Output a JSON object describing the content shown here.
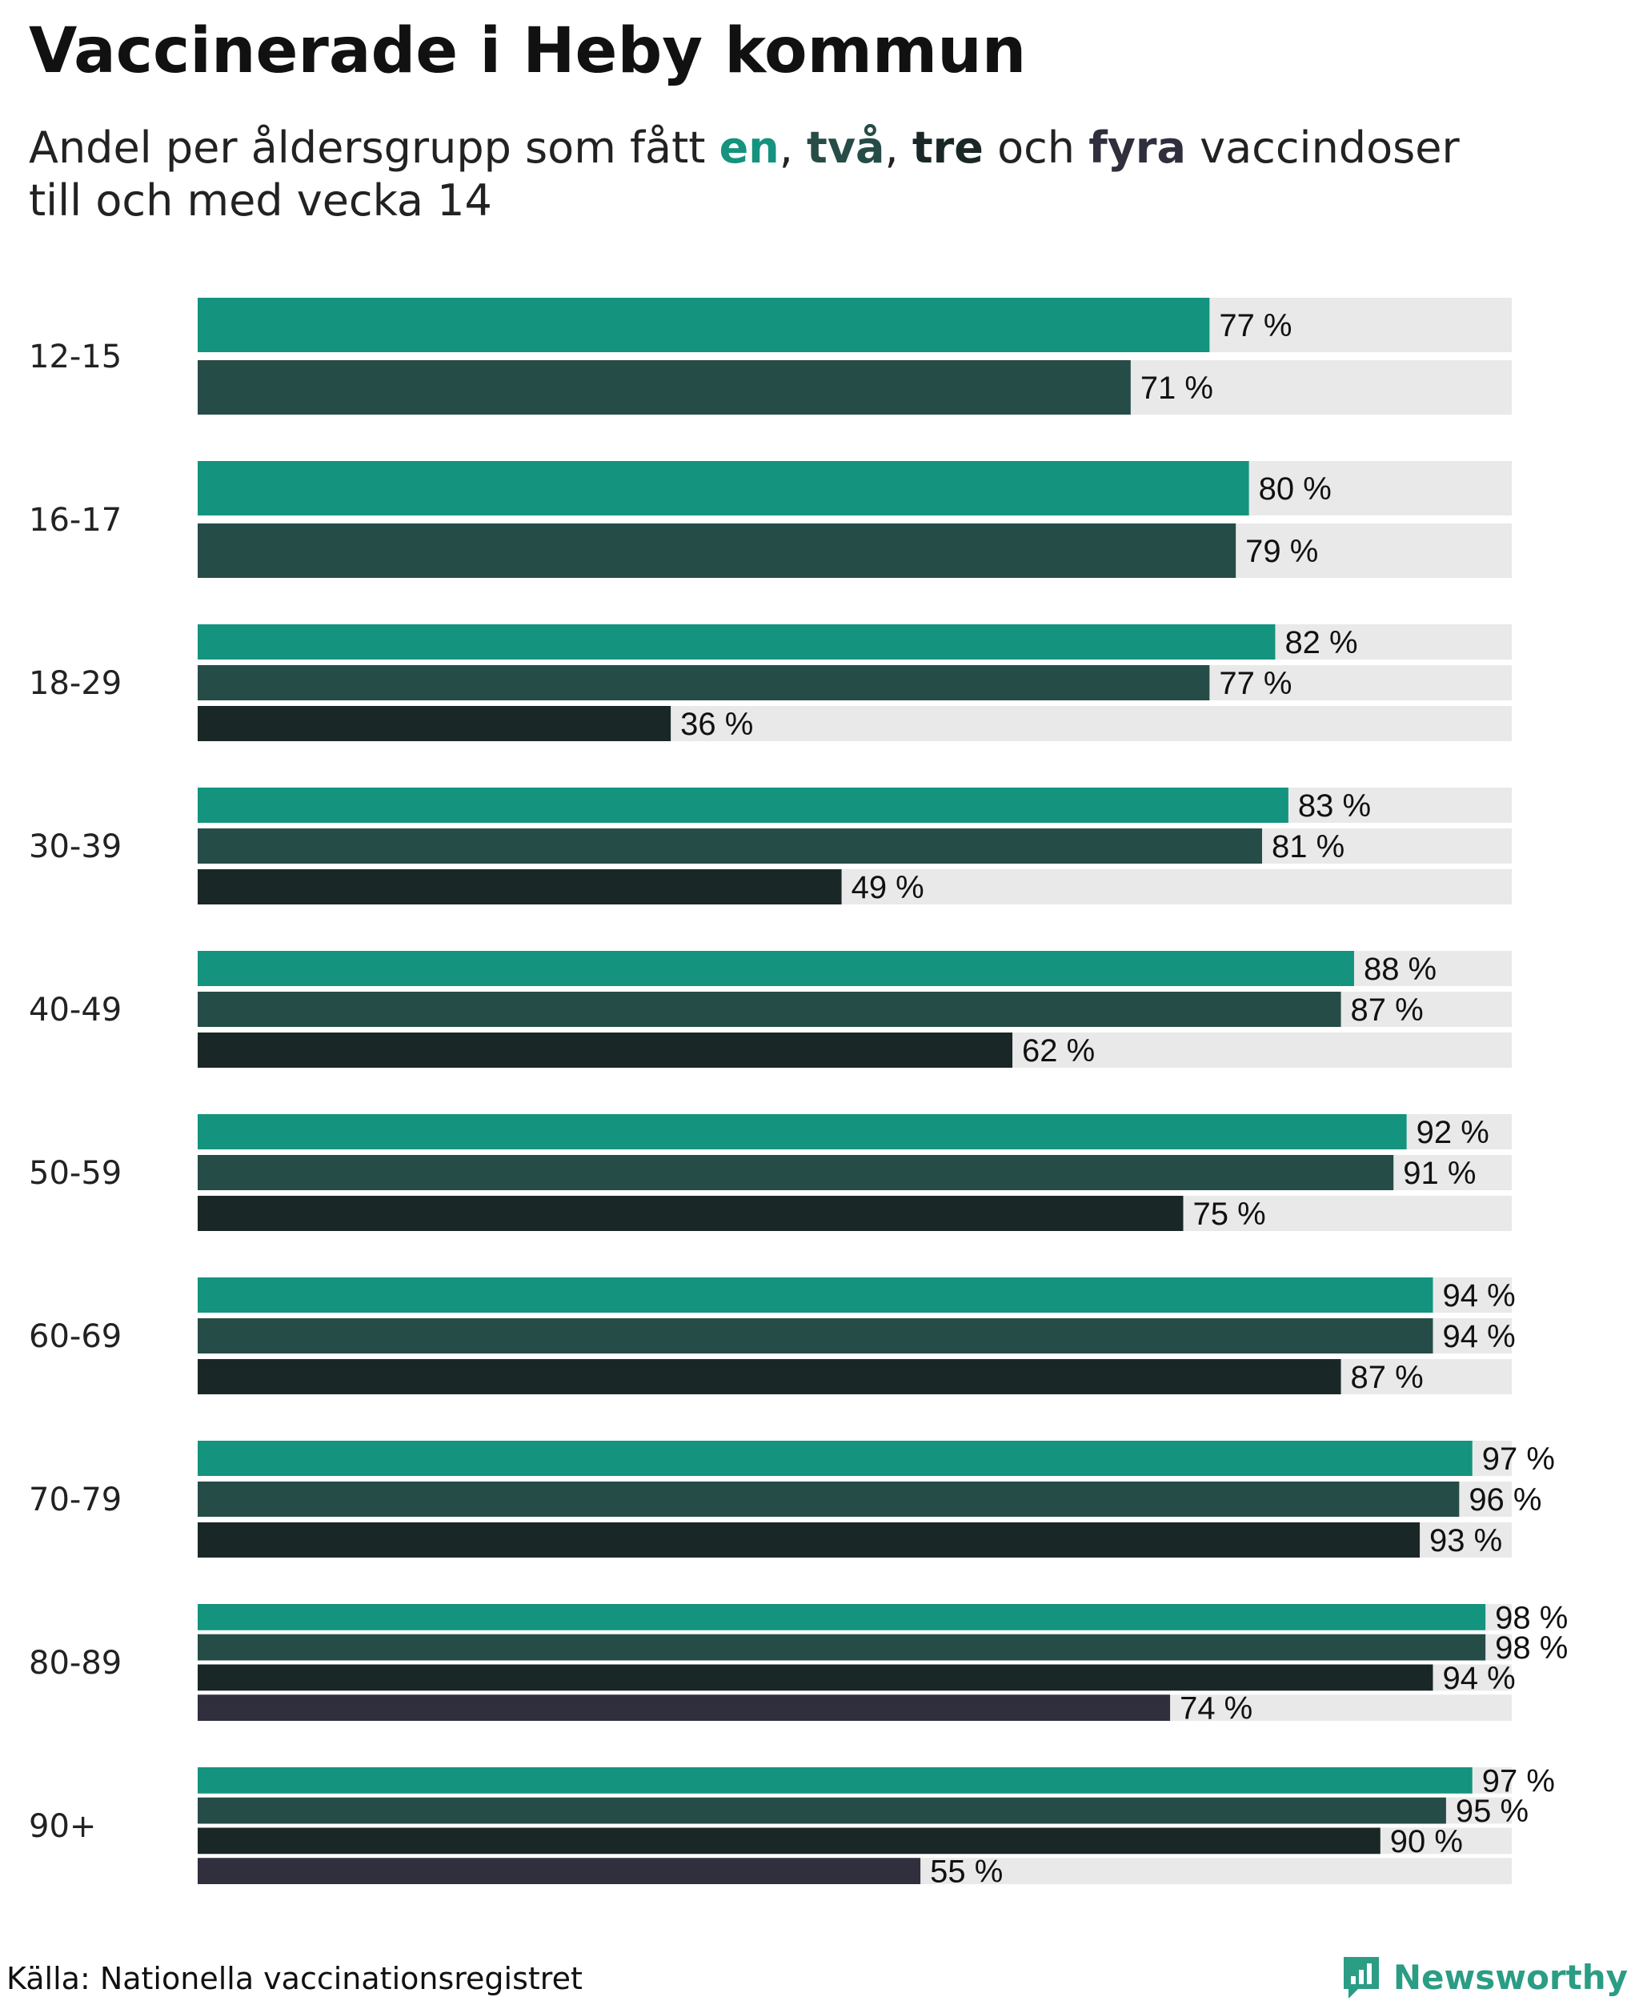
{
  "title": "Vaccinerade i Heby kommun",
  "subtitle": {
    "prefix": "Andel per åldersgrupp som fått ",
    "dose_words": [
      "en",
      "två",
      "tre",
      "fyra"
    ],
    "sep1": ", ",
    "sep2": ", ",
    "connector": " och ",
    "suffix": " vaccindoser",
    "line2": "till och med vecka 14"
  },
  "colors": {
    "dose1": "#14937f",
    "dose2": "#264c48",
    "dose3": "#192826",
    "dose4": "#302f3d",
    "track": "#e9e9e9",
    "brand": "#2a9d84"
  },
  "chart_data": {
    "type": "bar",
    "orientation": "horizontal",
    "title": "Vaccinerade i Heby kommun",
    "value_suffix": " %",
    "xlim": [
      0,
      100
    ],
    "series_names": [
      "en",
      "två",
      "tre",
      "fyra"
    ],
    "groups": [
      {
        "label": "12-15",
        "values": [
          77,
          71
        ]
      },
      {
        "label": "16-17",
        "values": [
          80,
          79
        ]
      },
      {
        "label": "18-29",
        "values": [
          82,
          77,
          36
        ]
      },
      {
        "label": "30-39",
        "values": [
          83,
          81,
          49
        ]
      },
      {
        "label": "40-49",
        "values": [
          88,
          87,
          62
        ]
      },
      {
        "label": "50-59",
        "values": [
          92,
          91,
          75
        ]
      },
      {
        "label": "60-69",
        "values": [
          94,
          94,
          87
        ]
      },
      {
        "label": "70-79",
        "values": [
          97,
          96,
          93
        ]
      },
      {
        "label": "80-89",
        "values": [
          98,
          98,
          94,
          74
        ]
      },
      {
        "label": "90+",
        "values": [
          97,
          95,
          90,
          55
        ]
      }
    ]
  },
  "footer": {
    "source": "Källa: Nationella vaccinationsregistret",
    "brand": "Newsworthy",
    "brand_icon": "newsworthy-logo-icon"
  }
}
